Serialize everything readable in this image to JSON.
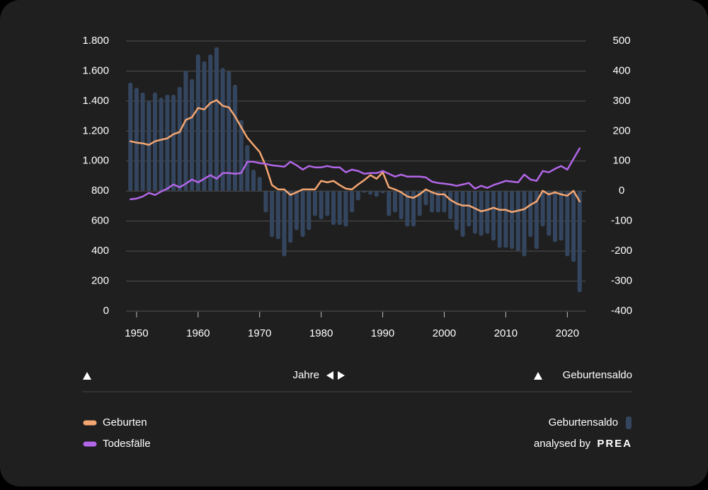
{
  "chart_data": {
    "type": "combo",
    "xlabel": "Jahre",
    "y2label": "Geburtensaldo",
    "credit": "analysed by",
    "brand": "PREA",
    "x": [
      1949,
      1950,
      1951,
      1952,
      1953,
      1954,
      1955,
      1956,
      1957,
      1958,
      1959,
      1960,
      1961,
      1962,
      1963,
      1964,
      1965,
      1966,
      1967,
      1968,
      1969,
      1970,
      1971,
      1972,
      1973,
      1974,
      1975,
      1976,
      1977,
      1978,
      1979,
      1980,
      1981,
      1982,
      1983,
      1984,
      1985,
      1986,
      1987,
      1988,
      1989,
      1990,
      1991,
      1992,
      1993,
      1994,
      1995,
      1996,
      1997,
      1998,
      1999,
      2000,
      2001,
      2002,
      2003,
      2004,
      2005,
      2006,
      2007,
      2008,
      2009,
      2010,
      2011,
      2012,
      2013,
      2014,
      2015,
      2016,
      2017,
      2018,
      2019,
      2020,
      2021,
      2022
    ],
    "xlim": [
      1948,
      2023
    ],
    "xticks": [
      1950,
      1960,
      1970,
      1980,
      1990,
      2000,
      2010,
      2020
    ],
    "ylim": [
      0,
      1800
    ],
    "yticks": [
      0,
      200,
      400,
      600,
      800,
      {
        "value": 1000,
        "label": "1.000"
      },
      {
        "value": 1200,
        "label": "1.200"
      },
      {
        "value": 1400,
        "label": "1.400"
      },
      {
        "value": 1600,
        "label": "1.600"
      },
      {
        "value": 1800,
        "label": "1.800"
      }
    ],
    "y2lim": [
      -400,
      500
    ],
    "y2ticks": [
      500,
      400,
      300,
      200,
      100,
      0,
      -100,
      -200,
      -300,
      -400
    ],
    "grid": true,
    "series": [
      {
        "name": "Geburtensaldo",
        "type": "bar",
        "axis": "y2",
        "color": "#34465f",
        "values": [
          361,
          344,
          328,
          300,
          328,
          311,
          321,
          321,
          347,
          401,
          373,
          455,
          432,
          455,
          479,
          410,
          399,
          354,
          236,
          153,
          71,
          47,
          -71,
          -153,
          -160,
          -217,
          -172,
          -130,
          -153,
          -130,
          -83,
          -94,
          -83,
          -113,
          -113,
          -118,
          -71,
          -31,
          -5,
          -12,
          -19,
          -7,
          -83,
          -71,
          -94,
          -118,
          -118,
          -83,
          -47,
          -71,
          -71,
          -71,
          -94,
          -130,
          -153,
          -118,
          -142,
          -149,
          -142,
          -165,
          -189,
          -189,
          -193,
          -200,
          -217,
          -153,
          -193,
          -118,
          -149,
          -170,
          -165,
          -217,
          -236,
          -337
        ]
      },
      {
        "name": "Geburten",
        "type": "line",
        "color": "#f4a672",
        "values": [
          1132,
          1123,
          1118,
          1108,
          1132,
          1142,
          1151,
          1179,
          1193,
          1274,
          1292,
          1354,
          1344,
          1387,
          1406,
          1368,
          1358,
          1297,
          1226,
          1156,
          1108,
          1061,
          967,
          840,
          811,
          811,
          774,
          792,
          811,
          811,
          811,
          868,
          858,
          868,
          840,
          816,
          811,
          844,
          873,
          906,
          882,
          925,
          825,
          811,
          792,
          764,
          755,
          778,
          811,
          792,
          778,
          778,
          741,
          717,
          703,
          703,
          684,
          665,
          675,
          689,
          675,
          675,
          660,
          670,
          679,
          708,
          731,
          802,
          778,
          792,
          778,
          769,
          802,
          731
        ]
      },
      {
        "name": "Todesfälle",
        "type": "line",
        "color": "#b266e8",
        "values": [
          745,
          750,
          764,
          788,
          774,
          797,
          816,
          844,
          825,
          849,
          877,
          858,
          882,
          906,
          882,
          920,
          920,
          915,
          920,
          995,
          995,
          986,
          981,
          972,
          967,
          962,
          995,
          972,
          943,
          967,
          958,
          958,
          967,
          958,
          958,
          925,
          943,
          934,
          915,
          920,
          920,
          934,
          915,
          896,
          910,
          896,
          896,
          896,
          891,
          863,
          854,
          849,
          844,
          835,
          844,
          854,
          816,
          835,
          821,
          840,
          854,
          868,
          863,
          858,
          910,
          877,
          868,
          934,
          925,
          948,
          967,
          943,
          1014,
          1085
        ]
      }
    ]
  }
}
